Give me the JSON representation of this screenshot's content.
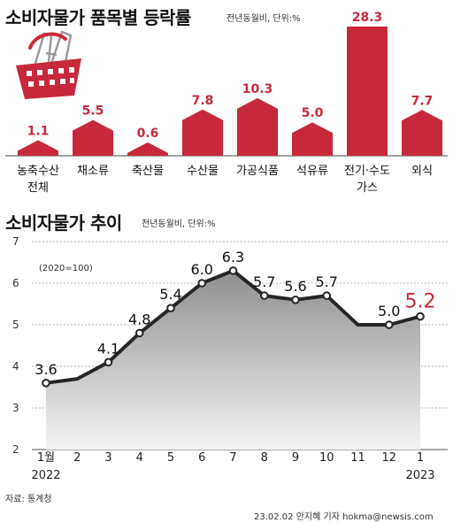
{
  "chart1": {
    "title": "소비자물가 품목별 등락률",
    "unit_note": "전년동월비, 단위:%",
    "bar_color": "#c8293a",
    "chart_data": {
      "type": "bar",
      "categories": [
        "농축수산\n전체",
        "채소류",
        "축산물",
        "수산물",
        "가공식품",
        "석유류",
        "전기·수도\n가스",
        "외식"
      ],
      "values": [
        1.1,
        5.5,
        0.6,
        7.8,
        10.3,
        5.0,
        28.3,
        7.7
      ],
      "value_labels": [
        "1.1",
        "5.5",
        "0.6",
        "7.8",
        "10.3",
        "5.0",
        "28.3",
        "7.7"
      ]
    }
  },
  "chart2": {
    "title": "소비자물가 추이",
    "unit_note": "전년동월비, 단위:%",
    "base_note": "(2020=100)",
    "accent_color": "#c8293a",
    "chart_data": {
      "type": "line",
      "x": [
        "1월",
        "2",
        "3",
        "4",
        "5",
        "6",
        "7",
        "8",
        "9",
        "10",
        "11",
        "12",
        "1"
      ],
      "values": [
        3.6,
        3.7,
        4.1,
        4.8,
        5.4,
        6.0,
        6.3,
        5.7,
        5.6,
        5.7,
        5.0,
        5.0,
        5.2
      ],
      "point_labels": [
        "3.6",
        "",
        "4.1",
        "4.8",
        "5.4",
        "6.0",
        "6.3",
        "5.7",
        "5.6",
        "5.7",
        "",
        "5.0",
        "5.2"
      ],
      "y_ticks": [
        "2",
        "3",
        "4",
        "5",
        "6",
        "7"
      ],
      "ylim": [
        2,
        7
      ],
      "year_start": "2022",
      "year_end": "2023",
      "grid": true
    }
  },
  "footer": {
    "source": "자료: 통계청",
    "credit": "23.02.02 안지혜 기자 hokma@newsis.com"
  }
}
